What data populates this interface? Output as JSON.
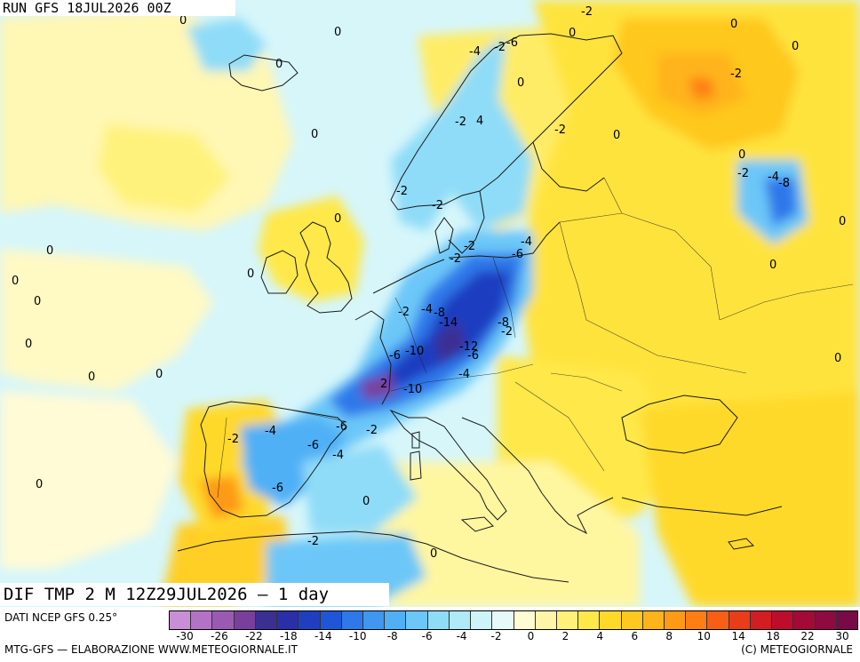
{
  "header": {
    "run_label": "RUN GFS 18JUL2026 00Z"
  },
  "footer": {
    "title": "DIF TMP 2 M 12Z29JUL2026 — 1 day",
    "source": "DATI NCEP GFS 0.25°",
    "credit": "MTG-GFS — ELABORAZIONE WWW.METEOGIORNALE.IT",
    "copyright": "(C) METEOGIORNALE"
  },
  "colorbar": {
    "colors": [
      "#c98fd6",
      "#b472c6",
      "#9a5ab4",
      "#7a3f9c",
      "#3c2f92",
      "#2a2fa8",
      "#1f3ec0",
      "#1f56d8",
      "#2f78ea",
      "#3f97f2",
      "#4fb0f6",
      "#6cc7f8",
      "#8fdcf8",
      "#aeeaf8",
      "#cdf4f8",
      "#e6fafa",
      "#fffbd2",
      "#fff5a6",
      "#fff07a",
      "#ffe84a",
      "#ffd92a",
      "#ffc81e",
      "#ffb31a",
      "#ff9a18",
      "#ff7e14",
      "#f85e14",
      "#e83c1a",
      "#d21e22",
      "#bc0e2c",
      "#a40a36",
      "#8e0a40",
      "#780a48"
    ],
    "tick_labels": [
      "-30",
      "-26",
      "-22",
      "-18",
      "-14",
      "-10",
      "-8",
      "-6",
      "-4",
      "-2",
      "0",
      "2",
      "4",
      "6",
      "8",
      "10",
      "14",
      "18",
      "22",
      "30"
    ]
  },
  "map": {
    "contour_labels": [
      "0",
      "0",
      "0",
      "0",
      "0",
      "0",
      "0",
      "0",
      "0",
      "0",
      "0",
      "0",
      "0",
      "0",
      "0",
      "0",
      "0",
      "0",
      "0",
      "0",
      "0",
      "0",
      "0",
      "0",
      "-2",
      "-2",
      "-2",
      "-2",
      "-2",
      "-2",
      "-2",
      "-2",
      "-2",
      "-2",
      "-2",
      "-2",
      "-2",
      "-2",
      "-2",
      "-4",
      "-4",
      "-4",
      "-4",
      "-4",
      "-4",
      "-4",
      "-6",
      "-6",
      "-6",
      "-6",
      "-6",
      "-6",
      "-6",
      "-8",
      "-8",
      "-8",
      "-10",
      "-10",
      "-12",
      "-14",
      "2",
      "4"
    ]
  }
}
